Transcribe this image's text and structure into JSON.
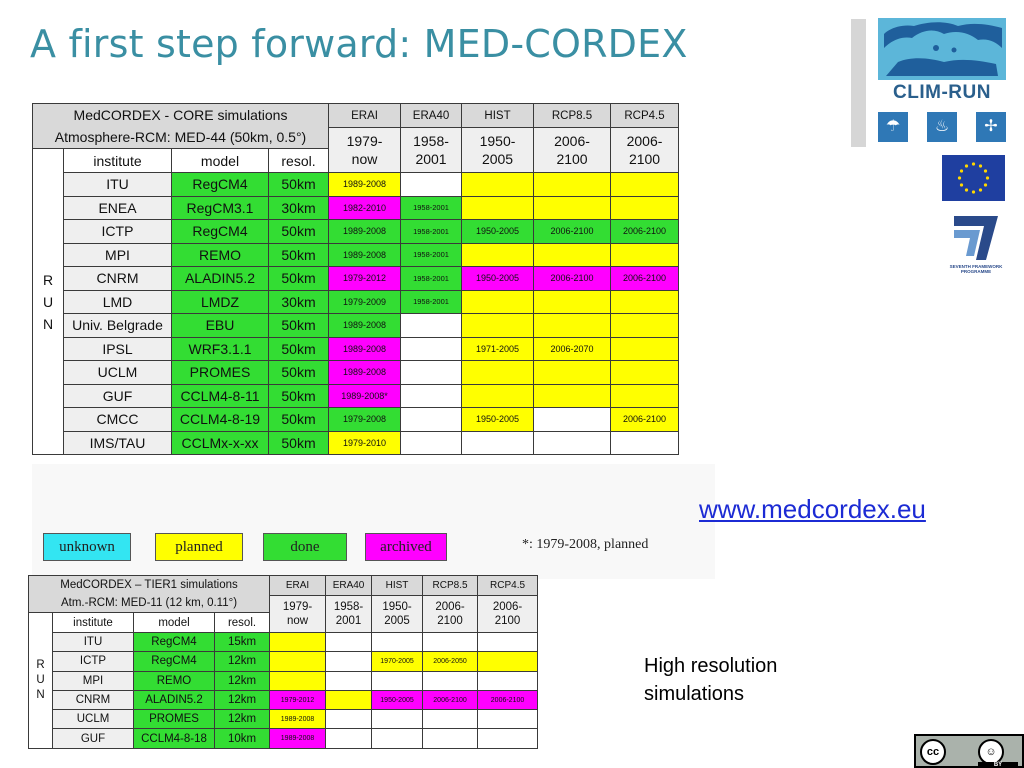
{
  "title": "A first step forward: MED-CORDEX",
  "logos": {
    "clim_run": "CLIM-RUN",
    "fp7_label": "SEVENTH FRAMEWORK PROGRAMME",
    "icons": [
      "umbrella-icon",
      "flame-icon",
      "wind-turbine-icon"
    ]
  },
  "core_table": {
    "title_line1": "MedCORDEX - CORE simulations",
    "title_line2": "Atmosphere-RCM: MED-44 (50km, 0.5°)",
    "experiments": [
      {
        "name": "ERAI",
        "period": "1979-\nnow"
      },
      {
        "name": "ERA40",
        "period": "1958-\n2001"
      },
      {
        "name": "HIST",
        "period": "1950-\n2005"
      },
      {
        "name": "RCP8.5",
        "period": "2006-\n2100"
      },
      {
        "name": "RCP4.5",
        "period": "2006-\n2100"
      }
    ],
    "col_institute": "institute",
    "col_model": "model",
    "col_resol": "resol.",
    "run_label": "R\nU\nN",
    "rows": [
      {
        "institute": "ITU",
        "model": "RegCM4",
        "resol": "50km",
        "mres": "g",
        "cells": [
          {
            "t": "1989-2008",
            "c": "y"
          },
          {
            "t": "",
            "c": "w"
          },
          {
            "t": "",
            "c": "y"
          },
          {
            "t": "",
            "c": "y"
          },
          {
            "t": "",
            "c": "y"
          }
        ]
      },
      {
        "institute": "ENEA",
        "model": "RegCM3.1",
        "resol": "30km",
        "mres": "g",
        "cells": [
          {
            "t": "1982-2010",
            "c": "m"
          },
          {
            "t": "1958-2001",
            "c": "g"
          },
          {
            "t": "",
            "c": "y"
          },
          {
            "t": "",
            "c": "y"
          },
          {
            "t": "",
            "c": "y"
          }
        ]
      },
      {
        "institute": "ICTP",
        "model": "RegCM4",
        "resol": "50km",
        "mres": "g",
        "cells": [
          {
            "t": "1989-2008",
            "c": "g"
          },
          {
            "t": "1958-2001",
            "c": "g"
          },
          {
            "t": "1950-2005",
            "c": "g"
          },
          {
            "t": "2006-2100",
            "c": "g"
          },
          {
            "t": "2006-2100",
            "c": "g"
          }
        ]
      },
      {
        "institute": "MPI",
        "model": "REMO",
        "resol": "50km",
        "mres": "g",
        "cells": [
          {
            "t": "1989-2008",
            "c": "g"
          },
          {
            "t": "1958-2001",
            "c": "g"
          },
          {
            "t": "",
            "c": "y"
          },
          {
            "t": "",
            "c": "y"
          },
          {
            "t": "",
            "c": "y"
          }
        ]
      },
      {
        "institute": "CNRM",
        "model": "ALADIN5.2",
        "resol": "50km",
        "mres": "g",
        "cells": [
          {
            "t": "1979-2012",
            "c": "m"
          },
          {
            "t": "1958-2001",
            "c": "g"
          },
          {
            "t": "1950-2005",
            "c": "m"
          },
          {
            "t": "2006-2100",
            "c": "m"
          },
          {
            "t": "2006-2100",
            "c": "m"
          }
        ]
      },
      {
        "institute": "LMD",
        "model": "LMDZ",
        "resol": "30km",
        "mres": "g",
        "cells": [
          {
            "t": "1979-2009",
            "c": "g"
          },
          {
            "t": "1958-2001",
            "c": "g"
          },
          {
            "t": "",
            "c": "y"
          },
          {
            "t": "",
            "c": "y"
          },
          {
            "t": "",
            "c": "y"
          }
        ]
      },
      {
        "institute": "Univ. Belgrade",
        "model": "EBU",
        "resol": "50km",
        "mres": "g",
        "cells": [
          {
            "t": "1989-2008",
            "c": "g"
          },
          {
            "t": "",
            "c": "w"
          },
          {
            "t": "",
            "c": "y"
          },
          {
            "t": "",
            "c": "y"
          },
          {
            "t": "",
            "c": "y"
          }
        ]
      },
      {
        "institute": "IPSL",
        "model": "WRF3.1.1",
        "resol": "50km",
        "mres": "g",
        "cells": [
          {
            "t": "1989-2008",
            "c": "m"
          },
          {
            "t": "",
            "c": "w"
          },
          {
            "t": "1971-2005",
            "c": "y"
          },
          {
            "t": "2006-2070",
            "c": "y"
          },
          {
            "t": "",
            "c": "y"
          }
        ]
      },
      {
        "institute": "UCLM",
        "model": "PROMES",
        "resol": "50km",
        "mres": "g",
        "cells": [
          {
            "t": "1989-2008",
            "c": "m"
          },
          {
            "t": "",
            "c": "w"
          },
          {
            "t": "",
            "c": "y"
          },
          {
            "t": "",
            "c": "y"
          },
          {
            "t": "",
            "c": "y"
          }
        ]
      },
      {
        "institute": "GUF",
        "model": "CCLM4-8-11",
        "resol": "50km",
        "mres": "g",
        "cells": [
          {
            "t": "1989-2008*",
            "c": "m"
          },
          {
            "t": "",
            "c": "w"
          },
          {
            "t": "",
            "c": "y"
          },
          {
            "t": "",
            "c": "y"
          },
          {
            "t": "",
            "c": "y"
          }
        ]
      },
      {
        "institute": "CMCC",
        "model": "CCLM4-8-19",
        "resol": "50km",
        "mres": "g",
        "cells": [
          {
            "t": "1979-2008",
            "c": "g"
          },
          {
            "t": "",
            "c": "w"
          },
          {
            "t": "1950-2005",
            "c": "y"
          },
          {
            "t": "",
            "c": "w"
          },
          {
            "t": "2006-2100",
            "c": "y"
          }
        ]
      },
      {
        "institute": "IMS/TAU",
        "model": "CCLMx-x-xx",
        "resol": "50km",
        "mres": "g",
        "cells": [
          {
            "t": "1979-2010",
            "c": "y"
          },
          {
            "t": "",
            "c": "w"
          },
          {
            "t": "",
            "c": "w"
          },
          {
            "t": "",
            "c": "w"
          },
          {
            "t": "",
            "c": "w"
          }
        ]
      }
    ]
  },
  "legend": {
    "unknown": "unknown",
    "planned": "planned",
    "done": "done",
    "archived": "archived",
    "note": "*: 1979-2008, planned",
    "colors": {
      "unknown": "#33e5f2",
      "planned": "#ffff00",
      "done": "#33dd33",
      "archived": "#ff00ff"
    }
  },
  "link": "www.medcordex.eu",
  "high_res_line1": "High resolution",
  "high_res_line2": "simulations",
  "tier_table": {
    "title_line1": "MedCORDEX – TIER1 simulations",
    "title_line2": "Atm.-RCM: MED-11 (12 km, 0.11°)",
    "experiments": [
      {
        "name": "ERAI",
        "period": "1979-\nnow"
      },
      {
        "name": "ERA40",
        "period": "1958-\n2001"
      },
      {
        "name": "HIST",
        "period": "1950-\n2005"
      },
      {
        "name": "RCP8.5",
        "period": "2006-\n2100"
      },
      {
        "name": "RCP4.5",
        "period": "2006-\n2100"
      }
    ],
    "col_institute": "institute",
    "col_model": "model",
    "col_resol": "resol.",
    "run_label": "R\nU\nN",
    "rows": [
      {
        "institute": "ITU",
        "model": "RegCM4",
        "resol": "15km",
        "cells": [
          {
            "t": "",
            "c": "y"
          },
          {
            "t": "",
            "c": "w"
          },
          {
            "t": "",
            "c": "w"
          },
          {
            "t": "",
            "c": "w"
          },
          {
            "t": "",
            "c": "w"
          }
        ]
      },
      {
        "institute": "ICTP",
        "model": "RegCM4",
        "resol": "12km",
        "cells": [
          {
            "t": "",
            "c": "y"
          },
          {
            "t": "",
            "c": "w"
          },
          {
            "t": "1970-2005",
            "c": "y"
          },
          {
            "t": "2006-2050",
            "c": "y"
          },
          {
            "t": "",
            "c": "y"
          }
        ]
      },
      {
        "institute": "MPI",
        "model": "REMO",
        "resol": "12km",
        "cells": [
          {
            "t": "",
            "c": "y"
          },
          {
            "t": "",
            "c": "w"
          },
          {
            "t": "",
            "c": "w"
          },
          {
            "t": "",
            "c": "w"
          },
          {
            "t": "",
            "c": "w"
          }
        ]
      },
      {
        "institute": "CNRM",
        "model": "ALADIN5.2",
        "resol": "12km",
        "cells": [
          {
            "t": "1979-2012",
            "c": "m"
          },
          {
            "t": "",
            "c": "y"
          },
          {
            "t": "1950-2005",
            "c": "m"
          },
          {
            "t": "2006-2100",
            "c": "m"
          },
          {
            "t": "2006-2100",
            "c": "m"
          }
        ]
      },
      {
        "institute": "UCLM",
        "model": "PROMES",
        "resol": "12km",
        "cells": [
          {
            "t": "1989-2008",
            "c": "y"
          },
          {
            "t": "",
            "c": "w"
          },
          {
            "t": "",
            "c": "w"
          },
          {
            "t": "",
            "c": "w"
          },
          {
            "t": "",
            "c": "w"
          }
        ]
      },
      {
        "institute": "GUF",
        "model": "CCLM4-8-18",
        "resol": "10km",
        "cells": [
          {
            "t": "1989-2008",
            "c": "m"
          },
          {
            "t": "",
            "c": "w"
          },
          {
            "t": "",
            "c": "w"
          },
          {
            "t": "",
            "c": "w"
          },
          {
            "t": "",
            "c": "w"
          }
        ]
      }
    ]
  },
  "cc_badge": {
    "cc": "cc",
    "by": "BY"
  }
}
